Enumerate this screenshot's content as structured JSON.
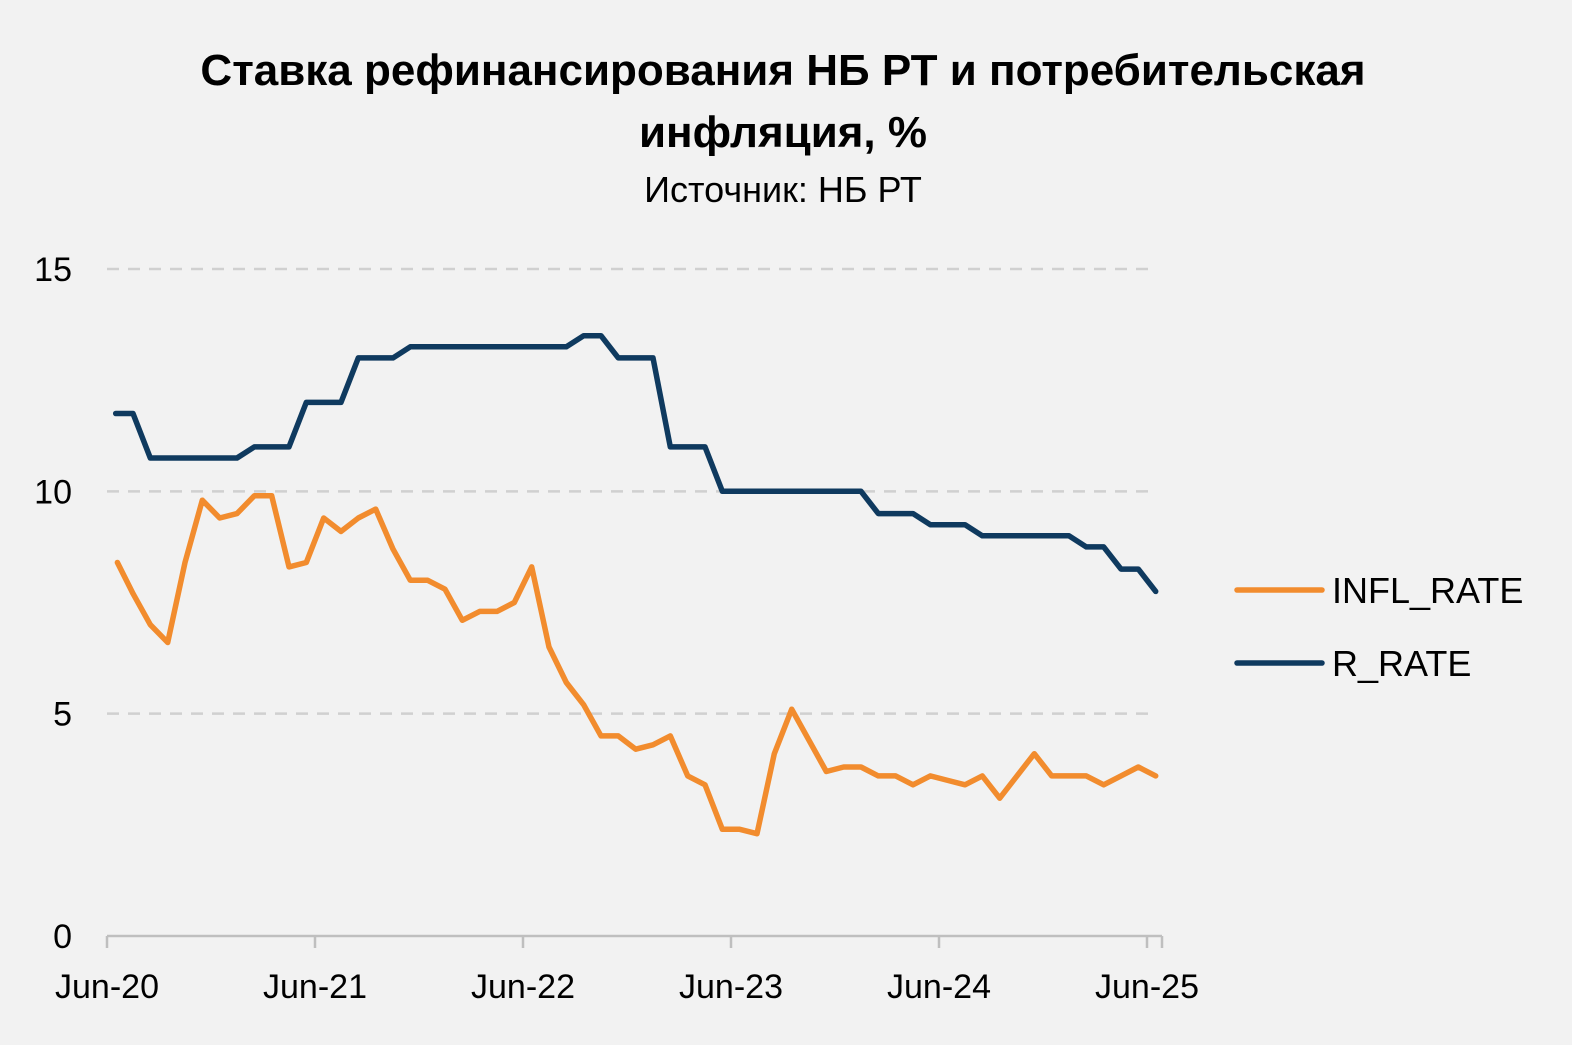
{
  "chart_data": {
    "type": "line",
    "title_line1": "Ставка рефинансирования НБ РТ и потребительская",
    "title_line2": "инфляция, %",
    "subtitle": "Источник: НБ РТ",
    "xlabel": "",
    "ylabel": "",
    "ylim": [
      0,
      15
    ],
    "yticks": [
      "0",
      "5",
      "10",
      "15"
    ],
    "xticks": [
      {
        "label": "Jun-20",
        "month": 0
      },
      {
        "label": "Jun-21",
        "month": 12
      },
      {
        "label": "Jun-22",
        "month": 24
      },
      {
        "label": "Jun-23",
        "month": 36
      },
      {
        "label": "Jun-24",
        "month": 48
      },
      {
        "label": "Jun-25",
        "month": 60
      }
    ],
    "x_range_months": [
      0,
      61
    ],
    "grid": "horizontal dashed",
    "legend_position": "right",
    "series": [
      {
        "name": "INFL_RATE",
        "color": "#f28c2e",
        "points": [
          [
            0.6,
            8.4
          ],
          [
            1.5,
            7.7
          ],
          [
            2.5,
            7.0
          ],
          [
            3.5,
            6.6
          ],
          [
            4.5,
            8.4
          ],
          [
            5.5,
            9.8
          ],
          [
            6.5,
            9.4
          ],
          [
            7.5,
            9.5
          ],
          [
            8.5,
            9.9
          ],
          [
            9.5,
            9.9
          ],
          [
            10.5,
            8.3
          ],
          [
            11.5,
            8.4
          ],
          [
            12.5,
            9.4
          ],
          [
            13.5,
            9.1
          ],
          [
            14.5,
            9.4
          ],
          [
            15.5,
            9.6
          ],
          [
            16.5,
            8.7
          ],
          [
            17.5,
            8.0
          ],
          [
            18.5,
            8.0
          ],
          [
            19.5,
            7.8
          ],
          [
            20.5,
            7.1
          ],
          [
            21.5,
            7.3
          ],
          [
            22.5,
            7.3
          ],
          [
            23.5,
            7.5
          ],
          [
            24.5,
            8.3
          ],
          [
            25.5,
            6.5
          ],
          [
            26.5,
            5.7
          ],
          [
            27.5,
            5.2
          ],
          [
            28.5,
            4.5
          ],
          [
            29.5,
            4.5
          ],
          [
            30.5,
            4.2
          ],
          [
            31.5,
            4.3
          ],
          [
            32.5,
            4.5
          ],
          [
            33.5,
            3.6
          ],
          [
            34.5,
            3.4
          ],
          [
            35.5,
            2.4
          ],
          [
            36.5,
            2.4
          ],
          [
            37.5,
            2.3
          ],
          [
            38.5,
            4.1
          ],
          [
            39.5,
            5.1
          ],
          [
            40.5,
            4.4
          ],
          [
            41.5,
            3.7
          ],
          [
            42.5,
            3.8
          ],
          [
            43.5,
            3.8
          ],
          [
            44.5,
            3.6
          ],
          [
            45.5,
            3.6
          ],
          [
            46.5,
            3.4
          ],
          [
            47.5,
            3.6
          ],
          [
            48.5,
            3.5
          ],
          [
            49.5,
            3.4
          ],
          [
            50.5,
            3.6
          ],
          [
            51.5,
            3.1
          ],
          [
            52.5,
            3.6
          ],
          [
            53.5,
            4.1
          ],
          [
            54.5,
            3.6
          ],
          [
            55.5,
            3.6
          ],
          [
            56.5,
            3.6
          ],
          [
            57.5,
            3.4
          ],
          [
            58.5,
            3.6
          ],
          [
            59.5,
            3.8
          ],
          [
            60.5,
            3.6
          ]
        ]
      },
      {
        "name": "R_RATE",
        "color": "#0f3a5f",
        "points": [
          [
            0.5,
            11.75
          ],
          [
            1.5,
            11.75
          ],
          [
            2.5,
            10.75
          ],
          [
            3.5,
            10.75
          ],
          [
            4.5,
            10.75
          ],
          [
            5.5,
            10.75
          ],
          [
            6.5,
            10.75
          ],
          [
            7.5,
            10.75
          ],
          [
            8.5,
            11.0
          ],
          [
            9.5,
            11.0
          ],
          [
            10.5,
            11.0
          ],
          [
            11.5,
            12.0
          ],
          [
            12.5,
            12.0
          ],
          [
            13.5,
            12.0
          ],
          [
            14.5,
            13.0
          ],
          [
            15.5,
            13.0
          ],
          [
            16.5,
            13.0
          ],
          [
            17.5,
            13.25
          ],
          [
            18.5,
            13.25
          ],
          [
            19.5,
            13.25
          ],
          [
            20.5,
            13.25
          ],
          [
            21.5,
            13.25
          ],
          [
            22.5,
            13.25
          ],
          [
            23.5,
            13.25
          ],
          [
            24.5,
            13.25
          ],
          [
            25.5,
            13.25
          ],
          [
            26.5,
            13.25
          ],
          [
            27.5,
            13.5
          ],
          [
            28.5,
            13.5
          ],
          [
            29.5,
            13.0
          ],
          [
            30.5,
            13.0
          ],
          [
            31.5,
            13.0
          ],
          [
            32.5,
            11.0
          ],
          [
            33.5,
            11.0
          ],
          [
            34.5,
            11.0
          ],
          [
            35.5,
            10.0
          ],
          [
            36.5,
            10.0
          ],
          [
            37.5,
            10.0
          ],
          [
            38.5,
            10.0
          ],
          [
            39.5,
            10.0
          ],
          [
            40.5,
            10.0
          ],
          [
            41.5,
            10.0
          ],
          [
            42.5,
            10.0
          ],
          [
            43.5,
            10.0
          ],
          [
            44.5,
            9.5
          ],
          [
            45.5,
            9.5
          ],
          [
            46.5,
            9.5
          ],
          [
            47.5,
            9.25
          ],
          [
            48.5,
            9.25
          ],
          [
            49.5,
            9.25
          ],
          [
            50.5,
            9.0
          ],
          [
            51.5,
            9.0
          ],
          [
            52.5,
            9.0
          ],
          [
            53.5,
            9.0
          ],
          [
            54.5,
            9.0
          ],
          [
            55.5,
            9.0
          ],
          [
            56.5,
            8.75
          ],
          [
            57.5,
            8.75
          ],
          [
            58.5,
            8.25
          ],
          [
            59.5,
            8.25
          ],
          [
            60.5,
            7.75
          ]
        ]
      }
    ]
  }
}
